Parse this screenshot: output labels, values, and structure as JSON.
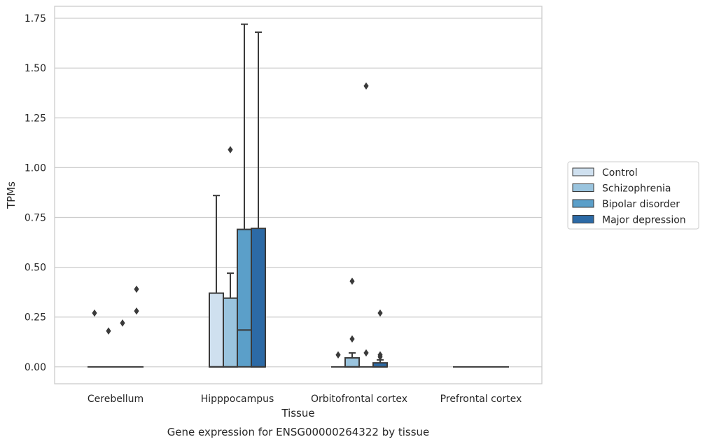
{
  "chart_data": {
    "type": "box",
    "caption": "Gene expression for ENSG00000264322 by tissue",
    "xlabel": "Tissue",
    "ylabel": "TPMs",
    "ylim": [
      -0.085,
      1.81
    ],
    "yticks": [
      0.0,
      0.25,
      0.5,
      0.75,
      1.0,
      1.25,
      1.5,
      1.75
    ],
    "ytick_labels": [
      "0.00",
      "0.25",
      "0.50",
      "0.75",
      "1.00",
      "1.25",
      "1.50",
      "1.75"
    ],
    "grid": true,
    "legend_position": "right",
    "categories": [
      "Cerebellum",
      "Hipppocampus",
      "Orbitofrontal cortex",
      "Prefrontal cortex"
    ],
    "series": [
      {
        "name": "Control",
        "color": "#cfe0ef",
        "boxes": [
          {
            "q1": 0,
            "median": 0,
            "q3": 0,
            "whisker_low": 0,
            "whisker_high": 0,
            "outliers": [
              0.27
            ]
          },
          {
            "q1": 0,
            "median": 0,
            "q3": 0.37,
            "whisker_low": 0,
            "whisker_high": 0.86,
            "outliers": []
          },
          {
            "q1": 0,
            "median": 0,
            "q3": 0,
            "whisker_low": 0,
            "whisker_high": 0,
            "outliers": [
              0.06
            ]
          },
          {
            "q1": 0,
            "median": 0,
            "q3": 0,
            "whisker_low": 0,
            "whisker_high": 0,
            "outliers": []
          }
        ]
      },
      {
        "name": "Schizophrenia",
        "color": "#9ac4de",
        "boxes": [
          {
            "q1": 0,
            "median": 0,
            "q3": 0,
            "whisker_low": 0,
            "whisker_high": 0,
            "outliers": [
              0.18
            ]
          },
          {
            "q1": 0,
            "median": 0,
            "q3": 0.345,
            "whisker_low": 0,
            "whisker_high": 0.47,
            "outliers": [
              1.09
            ]
          },
          {
            "q1": 0,
            "median": 0,
            "q3": 0.045,
            "whisker_low": 0,
            "whisker_high": 0.07,
            "outliers": [
              0.43,
              0.14
            ]
          },
          {
            "q1": 0,
            "median": 0,
            "q3": 0,
            "whisker_low": 0,
            "whisker_high": 0,
            "outliers": []
          }
        ]
      },
      {
        "name": "Bipolar disorder",
        "color": "#5b9fc9",
        "boxes": [
          {
            "q1": 0,
            "median": 0,
            "q3": 0,
            "whisker_low": 0,
            "whisker_high": 0,
            "outliers": [
              0.22
            ]
          },
          {
            "q1": 0,
            "median": 0.185,
            "q3": 0.69,
            "whisker_low": 0,
            "whisker_high": 1.72,
            "outliers": []
          },
          {
            "q1": 0,
            "median": 0,
            "q3": 0,
            "whisker_low": 0,
            "whisker_high": 0,
            "outliers": [
              1.41,
              0.07
            ]
          },
          {
            "q1": 0,
            "median": 0,
            "q3": 0,
            "whisker_low": 0,
            "whisker_high": 0,
            "outliers": []
          }
        ]
      },
      {
        "name": "Major depression",
        "color": "#2c6aa6",
        "boxes": [
          {
            "q1": 0,
            "median": 0,
            "q3": 0,
            "whisker_low": 0,
            "whisker_high": 0,
            "outliers": [
              0.39,
              0.28
            ]
          },
          {
            "q1": 0,
            "median": 0,
            "q3": 0.695,
            "whisker_low": 0,
            "whisker_high": 1.68,
            "outliers": []
          },
          {
            "q1": 0,
            "median": 0,
            "q3": 0.02,
            "whisker_low": 0,
            "whisker_high": 0.035,
            "outliers": [
              0.27,
              0.06,
              0.05
            ]
          },
          {
            "q1": 0,
            "median": 0,
            "q3": 0,
            "whisker_low": 0,
            "whisker_high": 0,
            "outliers": []
          }
        ]
      }
    ]
  }
}
